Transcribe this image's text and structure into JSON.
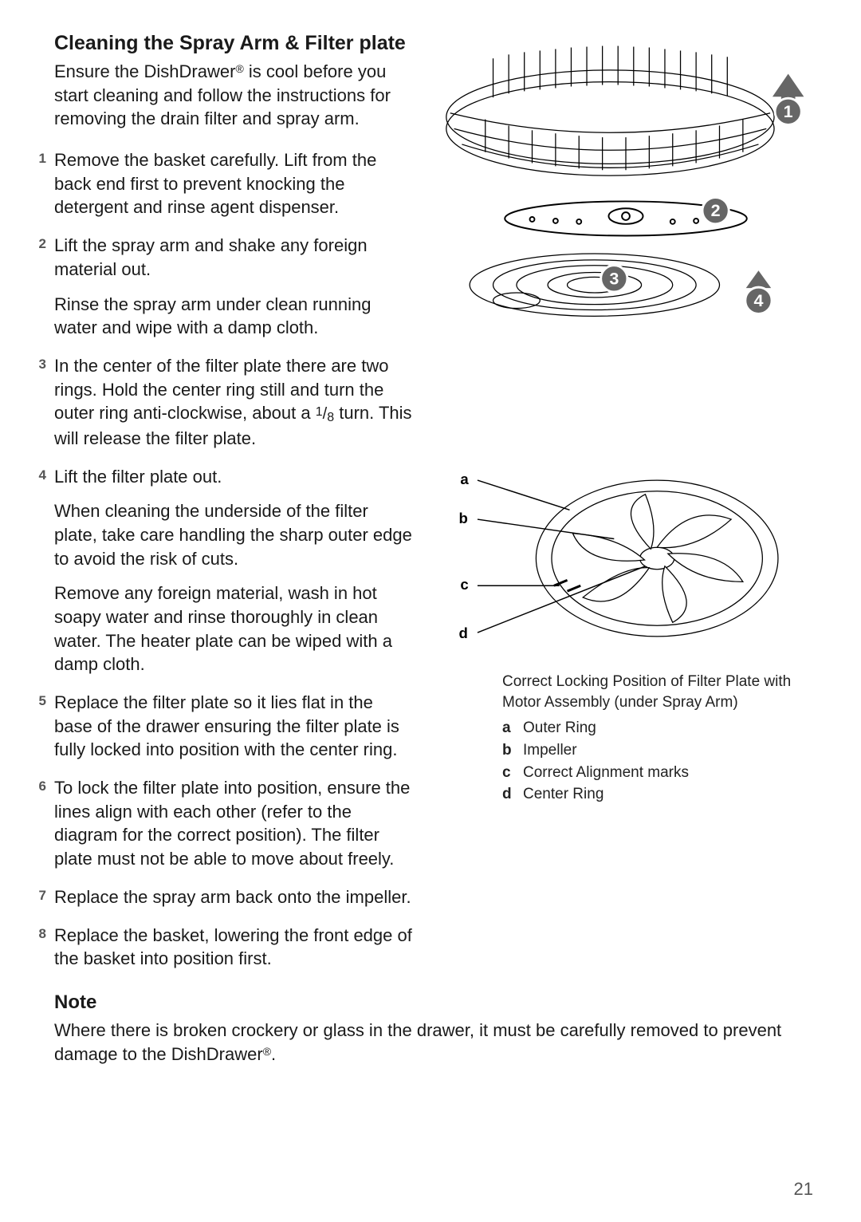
{
  "page_number": "21",
  "title": "Cleaning the Spray Arm & Filter plate",
  "intro_parts": {
    "a": "Ensure the DishDrawer",
    "reg": "®",
    "b": " is cool before you start cleaning and follow the instructions for removing the drain filter and spray arm."
  },
  "steps": [
    {
      "n": "1",
      "paras": [
        "Remove the basket carefully.  Lift from the back end first to prevent knocking the detergent and rinse agent dispenser."
      ]
    },
    {
      "n": "2",
      "paras": [
        "Lift the spray arm and shake any foreign material out.",
        "Rinse the spray arm under clean running water and wipe with a damp cloth."
      ]
    },
    {
      "n": "3",
      "paras": [
        "In the center of the filter plate there are two rings.  Hold the center ring still and turn the outer ring anti-clockwise, about a {FRAC} turn. This will release the filter plate."
      ]
    },
    {
      "n": "4",
      "paras": [
        "Lift the filter plate out.",
        "When cleaning the underside of the filter plate,  take care handling the sharp outer edge to avoid the risk of cuts.",
        "Remove any foreign material, wash in hot soapy water and rinse thoroughly in clean water.  The heater plate can be wiped with a damp cloth."
      ]
    },
    {
      "n": "5",
      "paras": [
        "Replace the filter plate so it lies flat in the base of the drawer ensuring the filter plate is fully locked into position with the center ring."
      ]
    },
    {
      "n": "6",
      "paras": [
        "To lock the filter plate into position, ensure the lines align with each other (refer to the diagram for the correct position).  The filter plate must not be able to move about freely."
      ]
    },
    {
      "n": "7",
      "paras": [
        "Replace the spray arm back onto the impeller."
      ]
    },
    {
      "n": "8",
      "paras": [
        "Replace the basket, lowering the front edge of the basket into position first."
      ]
    }
  ],
  "fraction": {
    "numer": "1",
    "denom": "8"
  },
  "note": {
    "title": "Note",
    "body_parts": {
      "a": "Where there is broken crockery or glass in the drawer, it must be carefully removed to prevent damage to the DishDrawer",
      "reg": "®",
      "b": "."
    }
  },
  "figure1": {
    "badges": [
      "1",
      "2",
      "3",
      "4"
    ]
  },
  "figure2": {
    "leaders": [
      {
        "key": "a",
        "label": "Outer Ring"
      },
      {
        "key": "b",
        "label": "Impeller"
      },
      {
        "key": "c",
        "label": "Correct Alignment marks"
      },
      {
        "key": "d",
        "label": "Center Ring"
      }
    ],
    "caption": "Correct Locking Position of Filter Plate with Motor Assembly (under Spray Arm)"
  },
  "colors": {
    "text": "#1a1a1a",
    "muted": "#555555",
    "badge_fill": "#666666",
    "badge_stroke": "#ffffff",
    "bg": "#ffffff"
  }
}
